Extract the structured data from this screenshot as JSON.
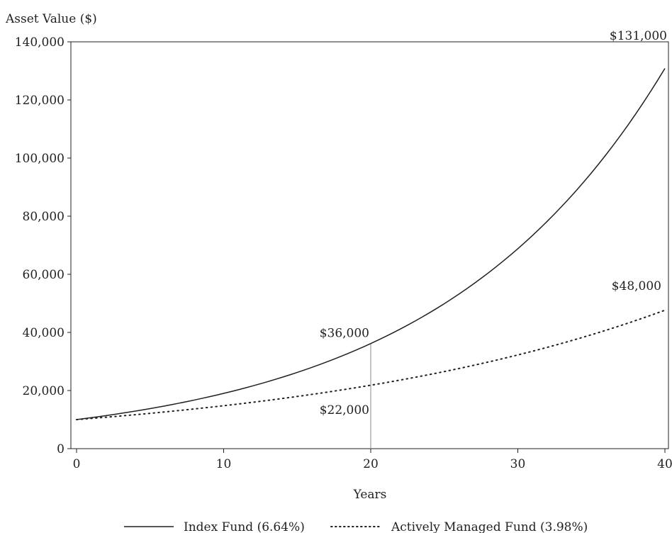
{
  "chart_data": {
    "type": "line",
    "ylabel": "Asset Value ($)",
    "xlabel": "Years",
    "xlim": [
      0,
      40
    ],
    "ylim": [
      0,
      140000
    ],
    "x_ticks": [
      0,
      10,
      20,
      30,
      40
    ],
    "y_ticks": [
      0,
      20000,
      40000,
      60000,
      80000,
      100000,
      120000,
      140000
    ],
    "x_tick_labels": [
      "0",
      "10",
      "20",
      "30",
      "40"
    ],
    "y_tick_labels": [
      "0",
      "20,000",
      "40,000",
      "60,000",
      "80,000",
      "100,000",
      "120,000",
      "140,000"
    ],
    "grid": false,
    "legend_position": "bottom",
    "series": [
      {
        "name": "Index Fund (6.64%)",
        "style": "solid",
        "color": "#231f20",
        "initial_value": 10000,
        "annual_rate": 0.0664,
        "x": [
          0,
          5,
          10,
          15,
          20,
          25,
          30,
          35,
          40
        ],
        "values": [
          10000,
          13800,
          19000,
          26100,
          36000,
          49600,
          68300,
          94300,
          131000
        ]
      },
      {
        "name": "Actively Managed Fund (3.98%)",
        "style": "dotted",
        "color": "#231f20",
        "initial_value": 10000,
        "annual_rate": 0.0398,
        "x": [
          0,
          5,
          10,
          15,
          20,
          25,
          30,
          35,
          40
        ],
        "values": [
          10000,
          12200,
          14800,
          18000,
          22000,
          26700,
          32500,
          39600,
          48000
        ]
      }
    ],
    "annotations": [
      {
        "text": "$131,000",
        "x": 40,
        "y": 131000,
        "series": 0
      },
      {
        "text": "$48,000",
        "x": 40,
        "y": 48000,
        "series": 1
      },
      {
        "text": "$36,000",
        "x": 20,
        "y": 36000,
        "series": 0
      },
      {
        "text": "$22,000",
        "x": 20,
        "y": 22000,
        "series": 1
      }
    ],
    "reference_line": {
      "x": 20,
      "y_from": 0,
      "y_to": 36000,
      "color": "#9d9d9d"
    }
  }
}
